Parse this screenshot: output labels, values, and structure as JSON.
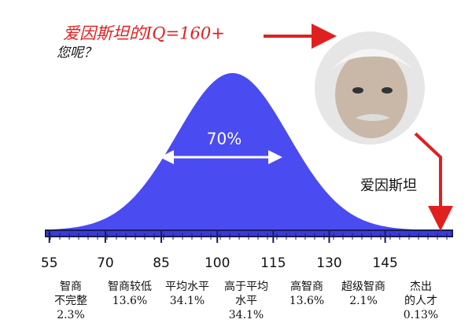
{
  "chart_data": {
    "type": "bell",
    "title": "爱因斯坦的IQ=160+",
    "subtitle": "您呢？",
    "annotation": "70%",
    "person_label": "爱因斯坦",
    "xlim": [
      54,
      163
    ],
    "xticks": [
      55,
      70,
      85,
      100,
      115,
      130,
      145
    ],
    "categories": [
      [
        "智商",
        "不完整"
      ],
      [
        "智商较低"
      ],
      [
        "平均水平"
      ],
      [
        "高于平均",
        "水平"
      ],
      [
        "高智商"
      ],
      [
        "超级智商"
      ],
      [
        "杰出",
        "的人才"
      ]
    ],
    "values": [
      2.3,
      13.6,
      34.1,
      34.1,
      13.6,
      2.1,
      0.13
    ],
    "value_labels": [
      "2.3%",
      "13.6%",
      "34.1%",
      "34.1%",
      "13.6%",
      "2.1%",
      "0.13%"
    ],
    "color": "#4b4bf2"
  }
}
